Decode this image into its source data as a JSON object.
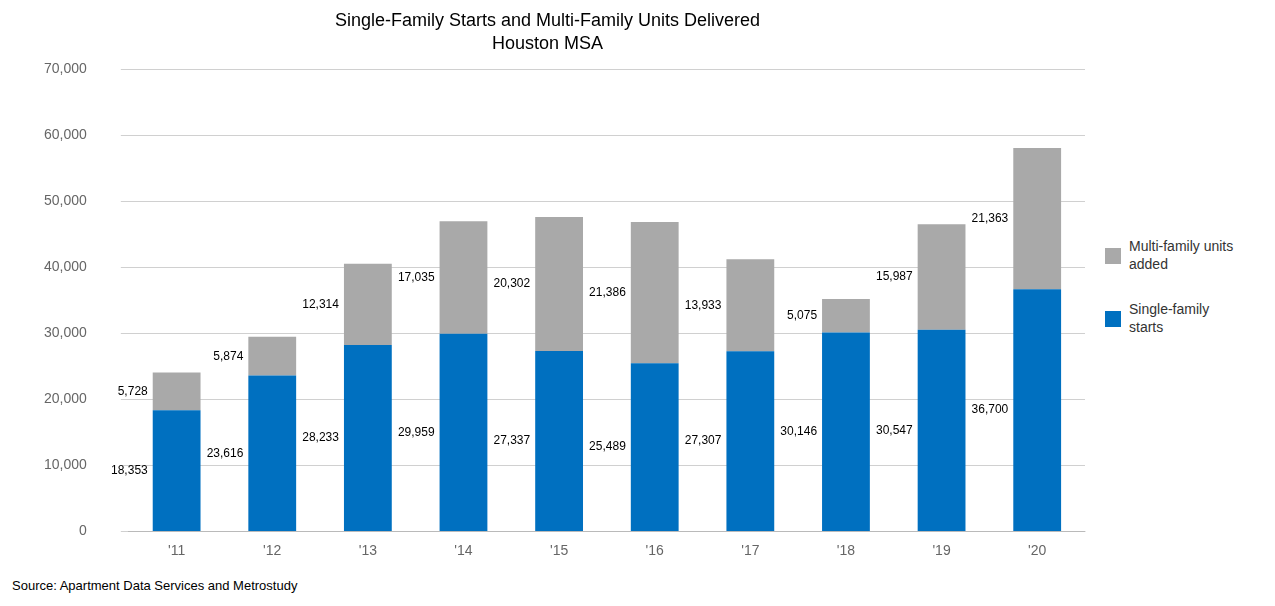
{
  "chart_data": {
    "type": "bar",
    "title": "Single-Family Starts and Multi-Family Units Delivered",
    "subtitle": "Houston MSA",
    "source": "Source: Apartment Data Services and Metrostudy",
    "categories": [
      "'11",
      "'12",
      "'13",
      "'14",
      "'15",
      "'16",
      "'17",
      "'18",
      "'19",
      "'20"
    ],
    "series": [
      {
        "name": "Single-family\nstarts",
        "color": "#0070C0",
        "values": [
          18353,
          23616,
          28233,
          29959,
          27337,
          25489,
          27307,
          30146,
          30547,
          36700
        ],
        "value_labels": [
          "18,353",
          "23,616",
          "28,233",
          "29,959",
          "27,337",
          "25,489",
          "27,307",
          "30,146",
          "30,547",
          "36,700"
        ]
      },
      {
        "name": "Multi-family units\nadded",
        "color": "#A9A9A9",
        "values": [
          5728,
          5874,
          12314,
          17035,
          20302,
          21386,
          13933,
          5075,
          15987,
          21363
        ],
        "value_labels": [
          "5,728",
          "5,874",
          "12,314",
          "17,035",
          "20,302",
          "21,386",
          "13,933",
          "5,075",
          "15,987",
          "21,363"
        ]
      }
    ],
    "stacked": true,
    "data_labels": true,
    "ylim": [
      0,
      70000
    ],
    "yticks": [
      0,
      {
        "value": 10000,
        "label": "10,000"
      },
      {
        "value": 20000,
        "label": "20,000"
      },
      {
        "value": 30000,
        "label": "30,000"
      },
      {
        "value": 40000,
        "label": "40,000"
      },
      {
        "value": 50000,
        "label": "50,000"
      },
      {
        "value": 60000,
        "label": "60,000"
      },
      {
        "value": 70000,
        "label": "70,000"
      }
    ],
    "grid": true,
    "legend": "right"
  }
}
